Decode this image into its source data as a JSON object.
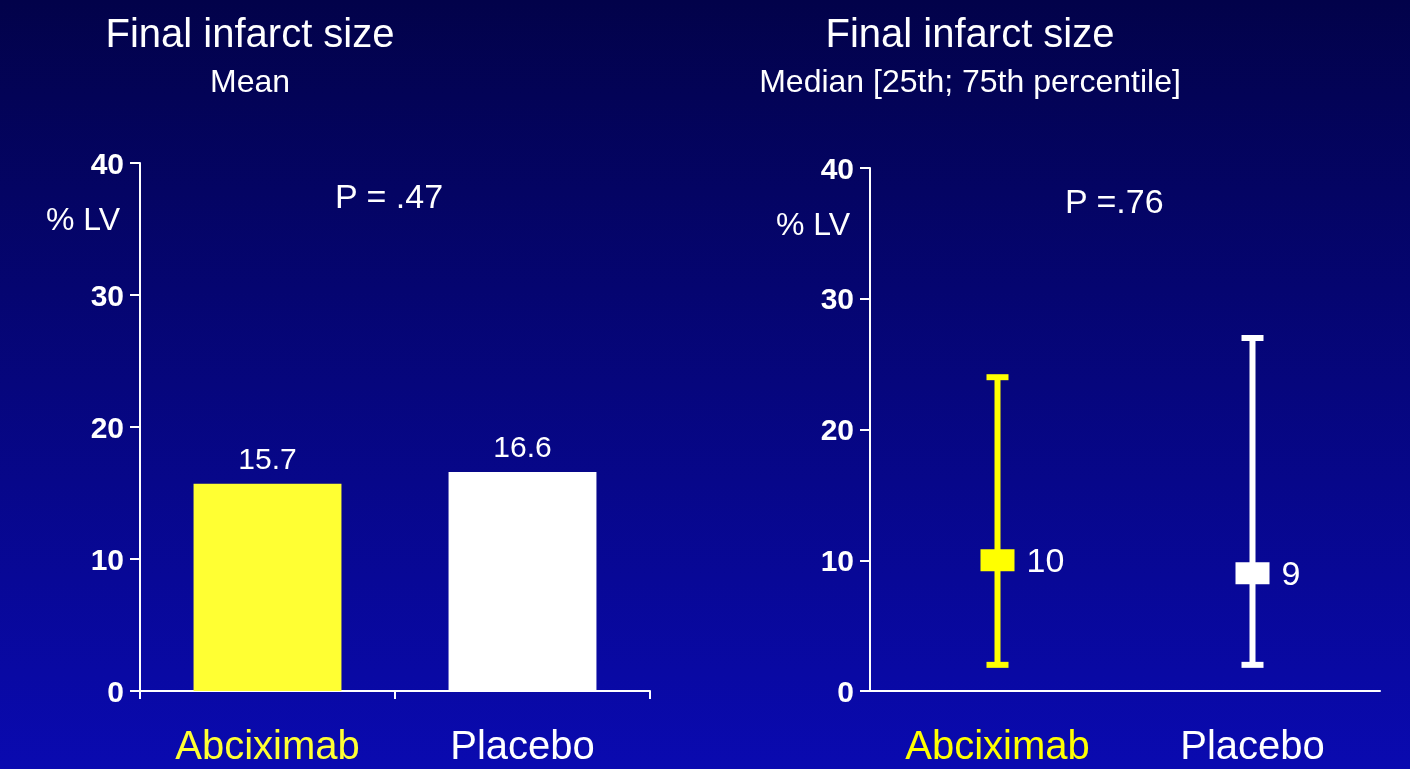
{
  "chart_data": [
    {
      "type": "bar",
      "title": "Final infarct size",
      "subtitle": "Mean",
      "ylabel": "% LV",
      "categories": [
        "Abciximab",
        "Placebo"
      ],
      "values": [
        15.7,
        16.6
      ],
      "colors": [
        "#ffff33",
        "#ffffff"
      ],
      "data_labels": true,
      "ylim": [
        0,
        40
      ],
      "yticks": [
        0,
        10,
        20,
        30,
        40
      ],
      "grid": false,
      "annotations": [
        "P = .47"
      ]
    },
    {
      "type": "scatter",
      "title": "Final infarct size",
      "subtitle": "Median [25th; 75th percentile]",
      "ylabel": "% LV",
      "categories": [
        "Abciximab",
        "Placebo"
      ],
      "series": [
        {
          "values": [
            10,
            9
          ],
          "errors": [
            [
              2,
              24
            ],
            [
              2,
              27
            ]
          ],
          "colors": [
            "#ffff00",
            "#ffffff"
          ]
        }
      ],
      "marker": "square",
      "data_labels": true,
      "ylim": [
        0,
        40
      ],
      "yticks": [
        0,
        10,
        20,
        30,
        40
      ],
      "grid": false,
      "annotations": [
        "P =.76"
      ]
    }
  ]
}
